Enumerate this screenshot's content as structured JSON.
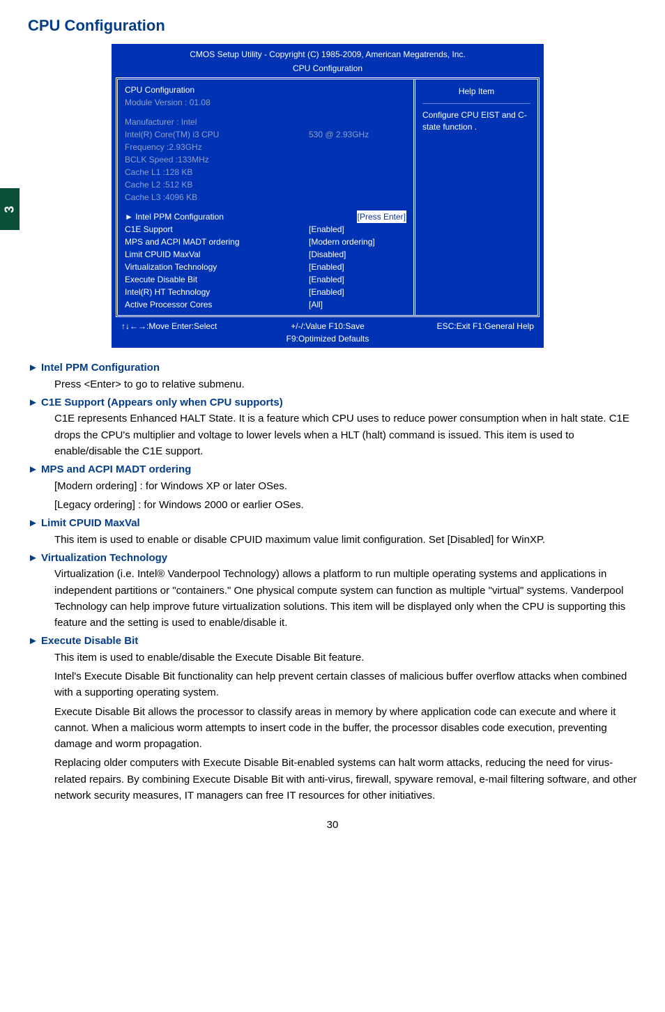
{
  "page": {
    "title": "CPU Configuration",
    "tab_number": "3",
    "page_number": "30"
  },
  "bios": {
    "colors": {
      "bg": "#0033b3",
      "text": "#ffffff",
      "muted": "#8ea0c8"
    },
    "header_line1": "CMOS Setup Utility - Copyright (C) 1985-2009, American Megatrends, Inc.",
    "header_line2": "CPU Configuration",
    "left_title": "CPU Configuration",
    "module": "Module Version :  01.08",
    "info": [
      {
        "label": "Manufacturer : Intel",
        "value": ""
      },
      {
        "label": "Intel(R) Core(TM)   i3 CPU",
        "value": "530  @  2.93GHz"
      },
      {
        "label": "Frequency      :2.93GHz",
        "value": ""
      },
      {
        "label": "BCLK Speed  :133MHz",
        "value": ""
      },
      {
        "label": "Cache L1       :128 KB",
        "value": ""
      },
      {
        "label": "Cache L2       :512 KB",
        "value": ""
      },
      {
        "label": "Cache L3       :4096 KB",
        "value": ""
      }
    ],
    "settings": [
      {
        "label": "► Intel PPM Configuration",
        "value": "[Press Enter]",
        "hl_value": true
      },
      {
        "label": "C1E Support",
        "value": "[Enabled]"
      },
      {
        "label": "MPS and ACPI MADT ordering",
        "value": "[Modern ordering]"
      },
      {
        "label": "Limit CPUID MaxVal",
        "value": "[Disabled]"
      },
      {
        "label": "Virtualization Technology",
        "value": "[Enabled]"
      },
      {
        "label": "Execute Disable Bit",
        "value": "[Enabled]"
      },
      {
        "label": "Intel(R) HT Technology",
        "value": "[Enabled]"
      },
      {
        "label": "Active Processor Cores",
        "value": "[All]"
      }
    ],
    "help_title": "Help Item",
    "help_body": "Configure CPU EIST and C-state function .",
    "footer": {
      "left": "↑↓←→:Move    Enter:Select",
      "center": "+/-/:Value      F10:Save",
      "center2": "F9:Optimized Defaults",
      "right": "ESC:Exit     F1:General Help"
    }
  },
  "content": [
    {
      "heading": "► Intel PPM Configuration",
      "paragraphs": [
        "Press <Enter> to go to relative submenu."
      ]
    },
    {
      "heading": "► C1E Support (Appears only when CPU supports)",
      "paragraphs": [
        "C1E represents Enhanced HALT State. It is a feature which CPU uses to reduce power consumption when in halt state. C1E drops the CPU's multiplier and voltage to lower levels when a HLT (halt) command is issued. This item is used to enable/disable the C1E support."
      ]
    },
    {
      "heading": "► MPS and ACPI MADT ordering",
      "paragraphs": [
        "[Modern ordering] : for Windows XP or later OSes.",
        "[Legacy ordering] : for Windows 2000 or earlier OSes."
      ]
    },
    {
      "heading": "► Limit CPUID MaxVal",
      "paragraphs": [
        "This item is used to enable or disable CPUID maximum value limit configuration. Set [Disabled] for WinXP."
      ]
    },
    {
      "heading": "► Virtualization Technology",
      "paragraphs": [
        "Virtualization (i.e. Intel® Vanderpool Technology) allows a platform to run multiple operating systems and applications in independent partitions or \"containers.\" One physical compute system can function as multiple \"virtual\" systems. Vanderpool Technology can help improve future virtualization solutions. This item will be displayed only when the CPU is supporting this feature and the setting is used to enable/disable it."
      ]
    },
    {
      "heading": "► Execute Disable Bit",
      "paragraphs": [
        "This item is used to enable/disable the Execute Disable Bit feature.",
        "Intel's Execute Disable Bit functionality can help prevent certain classes of malicious buffer overflow attacks when combined with a supporting operating system.",
        "Execute Disable Bit allows the processor to classify areas in memory by where application code can execute and where it cannot. When a malicious worm attempts to insert code in the buffer, the processor disables code execution, preventing damage and worm propagation.",
        "Replacing older computers with Execute Disable Bit-enabled systems can halt worm attacks, reducing the need for virus-related repairs. By combining Execute Disable Bit with anti-virus, firewall, spyware removal, e-mail filtering software, and other network security measures, IT managers can free IT resources for other initiatives."
      ]
    }
  ]
}
